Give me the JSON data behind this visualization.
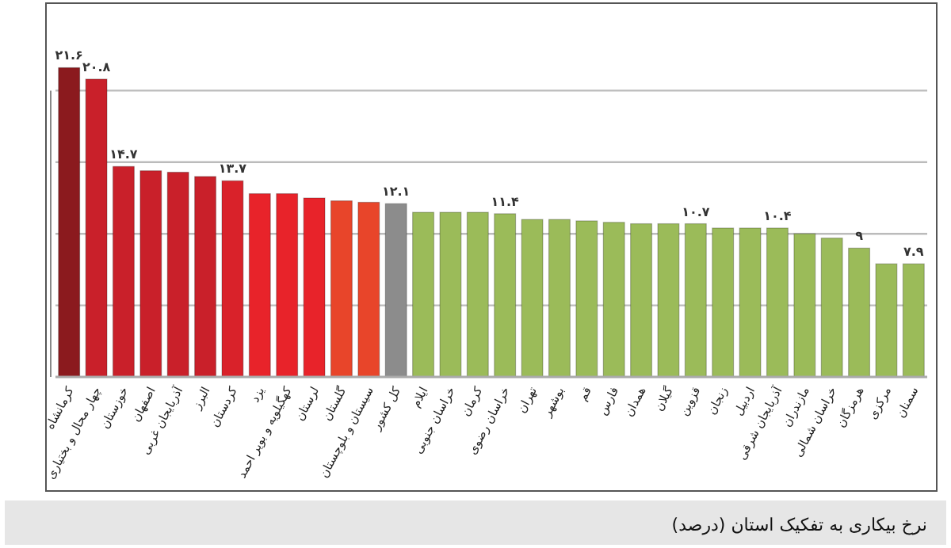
{
  "chart_data": {
    "type": "bar",
    "title": "نرخ بیکاری به تفکیک استان (درصد)",
    "categories": [
      "کرمانشاه",
      "چهار محال و بختیاری",
      "خوزستان",
      "اصفهان",
      "آذربایجان غربی",
      "البرز",
      "کردستان",
      "یزد",
      "کهگیلویه و بویر احمد",
      "لرستان",
      "گلستان",
      "سیستان و بلوچستان",
      "کل کشور",
      "ایلام",
      "خراسان جنوبی",
      "کرمان",
      "خراسان رضوی",
      "تهران",
      "بوشهر",
      "قم",
      "فارس",
      "همدان",
      "گیلان",
      "قزوین",
      "زنجان",
      "اردبیل",
      "آذربایجان شرقی",
      "مازندران",
      "خراسان شمالی",
      "هرمزگان",
      "مرکزی",
      "سمنان"
    ],
    "values": [
      21.6,
      20.8,
      14.7,
      14.4,
      14.3,
      14.0,
      13.7,
      12.8,
      12.8,
      12.5,
      12.3,
      12.2,
      12.1,
      11.5,
      11.5,
      11.5,
      11.4,
      11.0,
      11.0,
      10.9,
      10.8,
      10.7,
      10.7,
      10.7,
      10.4,
      10.4,
      10.4,
      10.0,
      9.7,
      9.0,
      7.9,
      7.9
    ],
    "value_labels": [
      "۲۱.۶",
      "۲۰.۸",
      "۱۴.۷",
      null,
      null,
      null,
      "۱۳.۷",
      null,
      null,
      null,
      null,
      null,
      "۱۲.۱",
      null,
      null,
      null,
      "۱۱.۴",
      null,
      null,
      null,
      null,
      null,
      null,
      "۱۰.۷",
      null,
      null,
      "۱۰.۴",
      null,
      null,
      "۹",
      null,
      "۷.۹"
    ],
    "colors": [
      "#8b1a1e",
      "#c9202a",
      "#c9202a",
      "#c9202a",
      "#c9202a",
      "#c9202a",
      "#d9222a",
      "#e8232a",
      "#e8232a",
      "#e8232a",
      "#e8452a",
      "#e8452a",
      "#8c8c8c",
      "#9bbb59",
      "#9bbb59",
      "#9bbb59",
      "#9bbb59",
      "#9bbb59",
      "#9bbb59",
      "#9bbb59",
      "#9bbb59",
      "#9bbb59",
      "#9bbb59",
      "#9bbb59",
      "#9bbb59",
      "#9bbb59",
      "#9bbb59",
      "#9bbb59",
      "#9bbb59",
      "#9bbb59",
      "#9bbb59",
      "#9bbb59"
    ],
    "yticks": [
      {
        "value": 5,
        "label": null
      },
      {
        "value": 10,
        "label": null
      },
      {
        "value": 15,
        "label": null
      },
      {
        "value": 20,
        "label": null
      }
    ],
    "grid": "y",
    "tick_labels": "x"
  }
}
